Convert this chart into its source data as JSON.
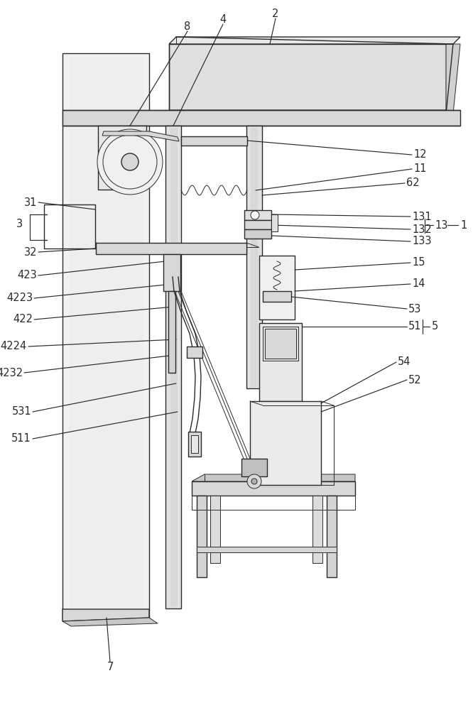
{
  "bg": "#ffffff",
  "lc": "#2a2a2a",
  "fg": "#e8e8e8",
  "fg2": "#d4d4d4",
  "fg3": "#c0c0c0",
  "fw": 6.66,
  "fh": 10.0
}
